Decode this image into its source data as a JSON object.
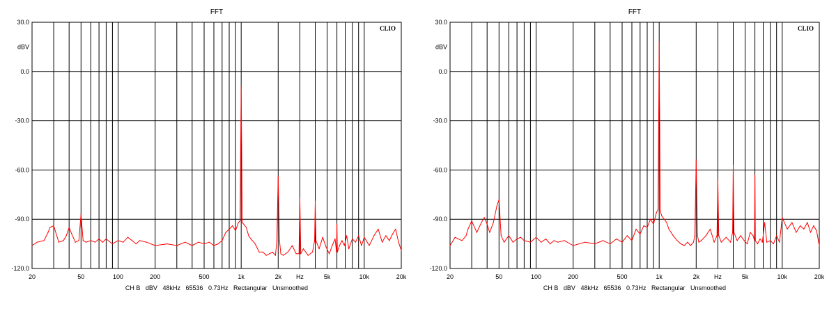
{
  "chart_data": [
    {
      "type": "line",
      "title": "FFT",
      "brand": "CLIO",
      "y_unit_label": "dBV",
      "x_unit_label": "Hz",
      "caption": "CH B   dBV   48kHz   65536   0.73Hz   Rectangular   Unsmoothed",
      "x_scale": "log",
      "xlim": [
        20,
        20000
      ],
      "ylim": [
        -120,
        30
      ],
      "x_ticks": [
        {
          "value": 20,
          "label": "20"
        },
        {
          "value": 50,
          "label": "50"
        },
        {
          "value": 100,
          "label": "100"
        },
        {
          "value": 200,
          "label": "200"
        },
        {
          "value": 500,
          "label": "500"
        },
        {
          "value": 1000,
          "label": "1k"
        },
        {
          "value": 2000,
          "label": "2k"
        },
        {
          "value": 5000,
          "label": "5k"
        },
        {
          "value": 10000,
          "label": "10k"
        },
        {
          "value": 20000,
          "label": "20k"
        }
      ],
      "y_ticks": [
        {
          "value": 30,
          "label": "30.0"
        },
        {
          "value": 0,
          "label": "0.0"
        },
        {
          "value": -30,
          "label": "-30.0"
        },
        {
          "value": -60,
          "label": "-60.0"
        },
        {
          "value": -90,
          "label": "-90.0"
        },
        {
          "value": -120,
          "label": "-120.0"
        }
      ],
      "grid": true,
      "line_color": "#ff0000",
      "series": [
        {
          "x": [
            20,
            22,
            25,
            27,
            28,
            30,
            33,
            36,
            38,
            40,
            42,
            45,
            48,
            50,
            52,
            55,
            60,
            65,
            70,
            75,
            80,
            90,
            100,
            110,
            120,
            130,
            140,
            150,
            170,
            200,
            250,
            300,
            350,
            400,
            450,
            500,
            550,
            600,
            650,
            700,
            750,
            800,
            850,
            900,
            950,
            980,
            1000,
            1020,
            1050,
            1100,
            1150,
            1200,
            1300,
            1400,
            1500,
            1600,
            1700,
            1800,
            1900,
            1950,
            2000,
            2050,
            2100,
            2200,
            2400,
            2600,
            2800,
            2950,
            3000,
            3050,
            3200,
            3500,
            3800,
            3950,
            4000,
            4050,
            4300,
            4600,
            4900,
            5200,
            5500,
            5800,
            5950,
            6000,
            6050,
            6300,
            6600,
            6900,
            7200,
            7500,
            8000,
            8500,
            9000,
            9500,
            10000,
            11000,
            12000,
            13000,
            14000,
            15000,
            16000,
            17000,
            18000,
            19000,
            20000
          ],
          "y": [
            -106,
            -104,
            -103,
            -98,
            -95,
            -94,
            -104,
            -103,
            -100,
            -95,
            -99,
            -104,
            -103,
            -87,
            -103,
            -104,
            -103,
            -104,
            -102,
            -104,
            -102,
            -105,
            -103,
            -104,
            -101,
            -103,
            -105,
            -103,
            -104,
            -106,
            -105,
            -106,
            -104,
            -106,
            -104,
            -105,
            -104,
            -106,
            -105,
            -103,
            -98,
            -96,
            -94,
            -97,
            -92,
            -91,
            -9,
            -92,
            -93,
            -95,
            -100,
            -102,
            -105,
            -110,
            -110,
            -112,
            -111,
            -110,
            -112,
            -103,
            -64,
            -103,
            -111,
            -112,
            -110,
            -106,
            -111,
            -111,
            -77,
            -111,
            -108,
            -112,
            -110,
            -103,
            -79,
            -103,
            -108,
            -101,
            -107,
            -111,
            -106,
            -102,
            -110,
            -93,
            -110,
            -106,
            -103,
            -106,
            -100,
            -108,
            -102,
            -104,
            -100,
            -106,
            -101,
            -106,
            -100,
            -96,
            -104,
            -100,
            -103,
            -99,
            -96,
            -104,
            -109
          ]
        }
      ]
    },
    {
      "type": "line",
      "title": "FFT",
      "brand": "CLIO",
      "y_unit_label": "dBV",
      "x_unit_label": "Hz",
      "caption": "CH B   dBV   48kHz   65536   0.73Hz   Rectangular   Unsmoothed",
      "x_scale": "log",
      "xlim": [
        20,
        20000
      ],
      "ylim": [
        -120,
        30
      ],
      "x_ticks": [
        {
          "value": 20,
          "label": "20"
        },
        {
          "value": 50,
          "label": "50"
        },
        {
          "value": 100,
          "label": "100"
        },
        {
          "value": 200,
          "label": "200"
        },
        {
          "value": 500,
          "label": "500"
        },
        {
          "value": 1000,
          "label": "1k"
        },
        {
          "value": 2000,
          "label": "2k"
        },
        {
          "value": 5000,
          "label": "5k"
        },
        {
          "value": 10000,
          "label": "10k"
        },
        {
          "value": 20000,
          "label": "20k"
        }
      ],
      "y_ticks": [
        {
          "value": 30,
          "label": "30.0"
        },
        {
          "value": 0,
          "label": "0.0"
        },
        {
          "value": -30,
          "label": "-30.0"
        },
        {
          "value": -60,
          "label": "-60.0"
        },
        {
          "value": -90,
          "label": "-90.0"
        },
        {
          "value": -120,
          "label": "-120.0"
        }
      ],
      "grid": true,
      "line_color": "#ff0000",
      "series": [
        {
          "x": [
            20,
            22,
            25,
            27,
            28,
            30,
            33,
            36,
            38,
            40,
            42,
            45,
            48,
            50,
            52,
            55,
            60,
            65,
            70,
            75,
            80,
            90,
            100,
            110,
            120,
            130,
            140,
            150,
            170,
            200,
            250,
            300,
            350,
            400,
            450,
            500,
            550,
            600,
            650,
            700,
            750,
            800,
            850,
            900,
            950,
            980,
            1000,
            1020,
            1050,
            1100,
            1150,
            1200,
            1300,
            1400,
            1500,
            1600,
            1700,
            1800,
            1900,
            1950,
            2000,
            2050,
            2100,
            2200,
            2400,
            2600,
            2800,
            2950,
            3000,
            3050,
            3200,
            3500,
            3800,
            3950,
            4000,
            4050,
            4300,
            4600,
            4900,
            5200,
            5500,
            5800,
            5950,
            6000,
            6050,
            6300,
            6600,
            6900,
            7200,
            7500,
            8000,
            8500,
            9000,
            9500,
            10000,
            11000,
            12000,
            13000,
            14000,
            15000,
            16000,
            17000,
            18000,
            19000,
            20000
          ],
          "y": [
            -106,
            -101,
            -103,
            -100,
            -96,
            -91,
            -98,
            -92,
            -89,
            -93,
            -98,
            -92,
            -82,
            -78,
            -100,
            -104,
            -100,
            -104,
            -102,
            -101,
            -103,
            -104,
            -101,
            -104,
            -102,
            -105,
            -103,
            -104,
            -103,
            -106,
            -104,
            -105,
            -103,
            -105,
            -102,
            -104,
            -100,
            -103,
            -96,
            -99,
            -94,
            -95,
            -90,
            -93,
            -86,
            -84,
            18,
            -85,
            -88,
            -90,
            -92,
            -96,
            -100,
            -103,
            -105,
            -106,
            -104,
            -106,
            -104,
            -100,
            -54,
            -100,
            -104,
            -103,
            -100,
            -96,
            -104,
            -100,
            -66,
            -100,
            -104,
            -101,
            -104,
            -98,
            -57,
            -98,
            -103,
            -100,
            -103,
            -105,
            -98,
            -100,
            -103,
            -63,
            -103,
            -105,
            -102,
            -104,
            -92,
            -104,
            -103,
            -105,
            -100,
            -104,
            -89,
            -96,
            -92,
            -98,
            -94,
            -96,
            -92,
            -98,
            -94,
            -97,
            -106
          ]
        }
      ]
    }
  ]
}
